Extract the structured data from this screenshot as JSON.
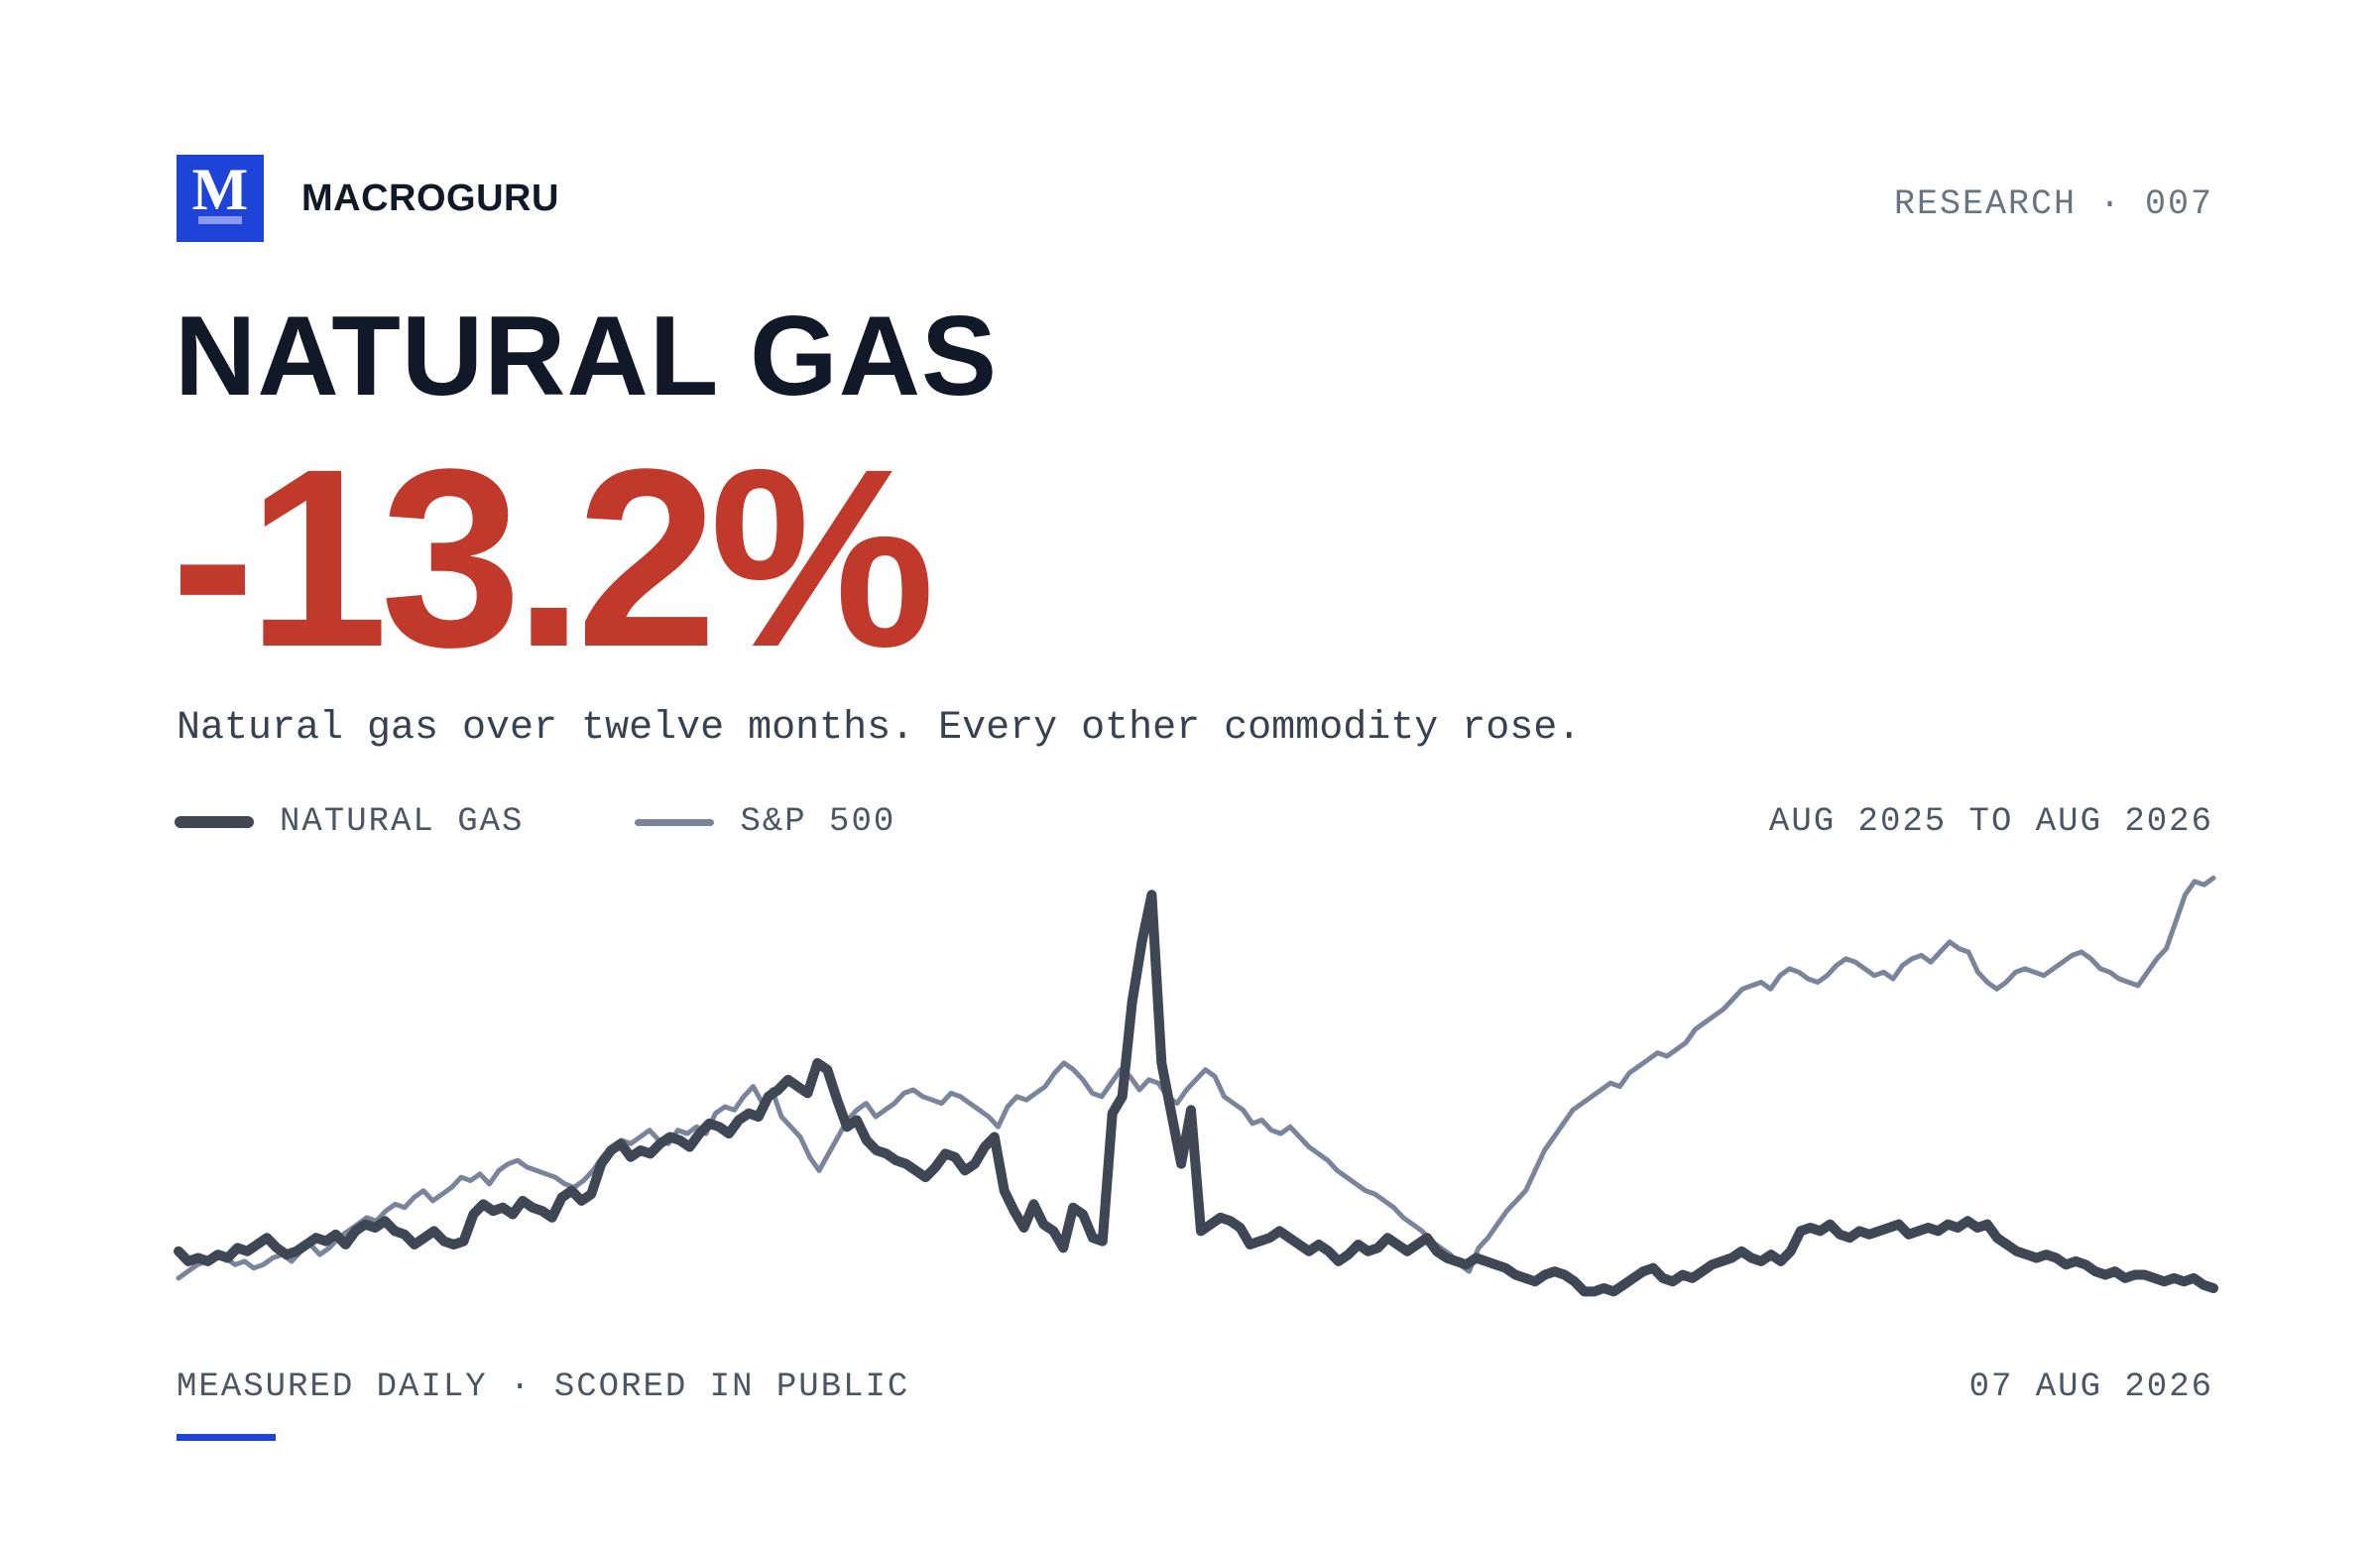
{
  "brand": {
    "logo_letter": "M",
    "name": "MACROGURU",
    "color": "#1d43d8"
  },
  "research_label": "RESEARCH · 007",
  "title": "NATURAL GAS",
  "headline_value": "-13.2%",
  "headline_color": "#c0392b",
  "subtitle": "Natural gas over twelve months. Every other commodity rose.",
  "footer": {
    "left": "MEASURED DAILY · SCORED IN PUBLIC",
    "date": "07 AUG 2026",
    "accent_color": "#1d43d8"
  },
  "chart_data": {
    "type": "line",
    "date_range_label": "AUG 2025 TO AUG 2026",
    "x_start": "Aug 2025",
    "x_end": "Aug 2026",
    "grid": false,
    "legend_position": "top-left",
    "y_units": "relative performance (index, start = 100)",
    "series": [
      {
        "name": "NATURAL GAS",
        "color": "#3f4654",
        "values": [
          104,
          101,
          102,
          101,
          103,
          102,
          105,
          104,
          106,
          108,
          105,
          103,
          104,
          106,
          108,
          107,
          109,
          106,
          110,
          112,
          111,
          113,
          110,
          109,
          106,
          108,
          110,
          107,
          106,
          107,
          115,
          118,
          116,
          117,
          115,
          119,
          117,
          116,
          114,
          120,
          122,
          119,
          121,
          130,
          134,
          136,
          132,
          134,
          133,
          136,
          138,
          137,
          135,
          139,
          142,
          141,
          139,
          143,
          145,
          144,
          150,
          152,
          155,
          153,
          151,
          160,
          158,
          149,
          141,
          143,
          137,
          134,
          133,
          131,
          130,
          128,
          126,
          129,
          133,
          132,
          128,
          130,
          135,
          138,
          122,
          116,
          111,
          118,
          112,
          110,
          105,
          117,
          115,
          108,
          107,
          145,
          150,
          178,
          196,
          210,
          160,
          145,
          130,
          146,
          110,
          112,
          114,
          113,
          111,
          106,
          107,
          108,
          110,
          108,
          106,
          104,
          106,
          104,
          101,
          103,
          106,
          104,
          105,
          108,
          106,
          104,
          106,
          108,
          104,
          102,
          101,
          100,
          102,
          101,
          100,
          99,
          97,
          96,
          95,
          97,
          98,
          97,
          95,
          92,
          92,
          93,
          92,
          94,
          96,
          98,
          99,
          96,
          95,
          97,
          96,
          98,
          100,
          101,
          102,
          104,
          102,
          101,
          103,
          101,
          104,
          110,
          111,
          110,
          112,
          109,
          108,
          110,
          109,
          110,
          111,
          112,
          109,
          110,
          111,
          110,
          112,
          111,
          113,
          111,
          112,
          108,
          106,
          104,
          103,
          102,
          103,
          102,
          100,
          101,
          100,
          98,
          97,
          98,
          96,
          97,
          97,
          96,
          95,
          96,
          95,
          96,
          94,
          93
        ],
        "sample_values": [
          104,
          103,
          102,
          104,
          103,
          101,
          102,
          105,
          103,
          106,
          104,
          102,
          103,
          106,
          105,
          107,
          104,
          103,
          102,
          104,
          106,
          105,
          107,
          104,
          103,
          105,
          104,
          106,
          105,
          103,
          114,
          117,
          115,
          118,
          116,
          114,
          118,
          115,
          117,
          120,
          121,
          118,
          120,
          131,
          133,
          135,
          133,
          134,
          132,
          135,
          137,
          136,
          134,
          138,
          141,
          140,
          138,
          142,
          144,
          146,
          150,
          152,
          154,
          152,
          150,
          158,
          156,
          148,
          140,
          142,
          136,
          134,
          132,
          130,
          129,
          127,
          126,
          128,
          132,
          131,
          128,
          129,
          134,
          137,
          121,
          115,
          110,
          116,
          111,
          109,
          104,
          116,
          114,
          107,
          106,
          140,
          149,
          178,
          195,
          204,
          160,
          145,
          128,
          147,
          110,
          111,
          113,
          112,
          110,
          106,
          107,
          108,
          110,
          108,
          106,
          104,
          106,
          104,
          102,
          103,
          106,
          104,
          105,
          108,
          106,
          104,
          106,
          108,
          104,
          102,
          101,
          100,
          102,
          101,
          100,
          99,
          97,
          96,
          95,
          97,
          98,
          97,
          95,
          92,
          92,
          93,
          92,
          94,
          96,
          98,
          99,
          96,
          95,
          97,
          96,
          98,
          100,
          101,
          102,
          104,
          102,
          101,
          103,
          101,
          104,
          110,
          111,
          110,
          112,
          109,
          108,
          110,
          109,
          110,
          111,
          112,
          109,
          110,
          111,
          110,
          112,
          111,
          113,
          111,
          112,
          108,
          106,
          104,
          103,
          102,
          103,
          102,
          100,
          101,
          100,
          98,
          97,
          98,
          96,
          97,
          97,
          96,
          95,
          96,
          95,
          96,
          94,
          93
        ]
      },
      {
        "name": "S&P 500",
        "color": "#7a849b",
        "values": [
          96,
          98,
          100,
          101,
          103,
          102,
          100,
          101,
          99,
          100,
          102,
          103,
          101,
          104,
          106,
          103,
          105,
          108,
          110,
          112,
          114,
          113,
          116,
          118,
          117,
          120,
          122,
          119,
          121,
          123,
          126,
          125,
          127,
          124,
          128,
          130,
          131,
          129,
          128,
          127,
          126,
          124,
          123,
          125,
          128,
          132,
          135,
          137,
          136,
          138,
          140,
          137,
          136,
          140,
          139,
          141,
          139,
          145,
          147,
          146,
          150,
          153,
          148,
          152,
          144,
          141,
          138,
          132,
          128,
          133,
          138,
          143,
          146,
          148,
          144,
          146,
          148,
          151,
          152,
          150,
          149,
          148,
          151,
          150,
          148,
          146,
          144,
          141,
          147,
          150,
          149,
          151,
          153,
          157,
          160,
          158,
          155,
          151,
          150,
          154,
          158,
          156,
          152,
          155,
          154,
          150,
          148,
          152,
          155,
          158,
          156,
          150,
          148,
          146,
          142,
          143,
          140,
          139,
          141,
          138,
          135,
          133,
          131,
          128,
          126,
          124,
          122,
          121,
          119,
          117,
          114,
          112,
          110,
          107,
          105,
          103,
          100,
          98,
          105,
          108,
          112,
          116,
          119,
          122,
          128,
          134,
          138,
          142,
          146,
          148,
          150,
          152,
          154,
          153,
          157,
          159,
          161,
          163,
          162,
          164,
          166,
          170,
          172,
          174,
          176,
          179,
          182,
          183,
          184,
          182,
          186,
          188,
          187,
          185,
          184,
          186,
          189,
          191,
          190,
          188,
          186,
          187,
          185,
          189,
          191,
          192,
          190,
          193,
          196,
          194,
          193,
          187,
          184,
          182,
          184,
          187,
          188,
          187,
          186,
          188,
          190,
          192,
          193,
          191,
          188,
          187,
          185,
          184,
          183,
          187,
          191,
          194,
          202,
          210,
          214,
          213,
          215
        ],
        "sample_values": [
          96,
          98,
          100,
          101,
          103,
          102,
          100,
          101,
          99,
          100,
          102,
          103,
          101,
          104,
          106,
          103,
          105,
          108,
          110,
          112,
          114,
          113,
          116,
          118,
          117,
          120,
          122,
          119,
          121,
          123,
          126,
          125,
          127,
          124,
          128,
          130,
          131,
          129,
          128,
          127,
          126,
          124,
          123,
          125,
          128,
          132,
          135,
          137,
          136,
          138,
          140,
          137,
          136,
          140,
          139,
          141,
          139,
          145,
          147,
          146,
          150,
          153,
          148,
          152,
          144,
          141,
          138,
          132,
          128,
          133,
          138,
          143,
          146,
          148,
          144,
          146,
          148,
          151,
          152,
          150,
          149,
          148,
          151,
          150,
          148,
          146,
          144,
          141,
          147,
          150,
          149,
          151,
          153,
          157,
          160,
          158,
          155,
          151,
          150,
          154,
          158,
          156,
          152,
          155,
          154,
          150,
          148,
          152,
          155,
          158,
          156,
          150,
          148,
          146,
          142,
          143,
          140,
          139,
          141,
          138,
          135,
          133,
          131,
          128,
          126,
          124,
          122,
          121,
          119,
          117,
          114,
          112,
          110,
          107,
          105,
          103,
          100,
          98,
          105,
          108,
          112,
          116,
          119,
          122,
          128,
          134,
          138,
          142,
          146,
          148,
          150,
          152,
          154,
          153,
          157,
          159,
          161,
          163,
          162,
          164,
          166,
          170,
          172,
          174,
          176,
          179,
          182,
          183,
          184,
          182,
          186,
          188,
          187,
          185,
          184,
          186,
          189,
          191,
          190,
          188,
          186,
          187,
          185,
          189,
          191,
          192,
          190,
          193,
          196,
          194,
          193,
          187,
          184,
          182,
          184,
          187,
          188,
          187,
          186,
          188,
          190,
          192,
          193,
          191,
          188,
          187,
          185,
          184,
          183,
          187,
          191,
          194,
          202,
          210,
          214,
          213,
          215
        ]
      }
    ],
    "y_range": [
      88,
      216
    ]
  }
}
